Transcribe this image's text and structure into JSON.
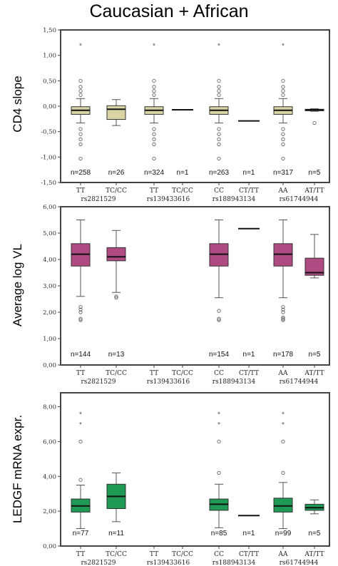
{
  "title": "Caucasian + African",
  "colors": {
    "cd4_box": "#d9d4a4",
    "vl_box": "#b04a82",
    "mrna_box": "#1f9a55",
    "frame": "#444444"
  },
  "chart_data": [
    {
      "type": "boxplot",
      "ylabel": "CD4  slope",
      "ylim": [
        -1.5,
        1.5
      ],
      "yticks": [
        "-1,50",
        "-1,00",
        "-0,50",
        "0,00",
        "0,50",
        "1,00",
        "1,50"
      ],
      "yticks_num": [
        -1.5,
        -1.0,
        -0.5,
        0.0,
        0.5,
        1.0,
        1.5
      ],
      "box_color": "#d9d4a4",
      "snps": [
        "rs2821529",
        "rs139433616",
        "rs188943134",
        "rs61744944"
      ],
      "categories": [
        "TT",
        "TC/CC",
        "TT",
        "TC/CC",
        "CC",
        "CT/TT",
        "AA",
        "AT/TT"
      ],
      "n_labels": [
        "n=258",
        "n=26",
        "n=324",
        "n=1",
        "n=263",
        "n=1",
        "n=317",
        "n=5"
      ],
      "boxes": [
        {
          "q1": -0.16,
          "median": -0.08,
          "q3": -0.01,
          "whislo": -0.33,
          "whishi": 0.15,
          "outliers": [
            -0.45,
            -0.55,
            -0.65,
            -0.75,
            0.22,
            0.3,
            0.38,
            0.5,
            1.2,
            -1.03
          ]
        },
        {
          "q1": -0.26,
          "median": -0.06,
          "q3": 0.01,
          "whislo": -0.38,
          "whishi": 0.13,
          "outliers": []
        },
        {
          "q1": -0.16,
          "median": -0.08,
          "q3": -0.01,
          "whislo": -0.33,
          "whishi": 0.15,
          "outliers": [
            -0.45,
            -0.55,
            -0.65,
            -0.75,
            0.22,
            0.3,
            0.38,
            0.5,
            1.2,
            -1.03
          ]
        },
        {
          "median": -0.07
        },
        {
          "q1": -0.16,
          "median": -0.08,
          "q3": -0.01,
          "whislo": -0.33,
          "whishi": 0.15,
          "outliers": [
            -0.45,
            -0.55,
            -0.65,
            -0.75,
            0.22,
            0.3,
            0.38,
            0.5,
            1.2,
            -1.03
          ]
        },
        {
          "median": -0.29
        },
        {
          "q1": -0.16,
          "median": -0.08,
          "q3": -0.01,
          "whislo": -0.33,
          "whishi": 0.15,
          "outliers": [
            -0.45,
            -0.55,
            -0.65,
            -0.75,
            0.22,
            0.3,
            0.38,
            0.5,
            1.2,
            -1.03
          ]
        },
        {
          "q1": -0.09,
          "median": -0.07,
          "q3": -0.06,
          "whislo": -0.1,
          "whishi": -0.05,
          "outliers": [
            -0.33
          ]
        }
      ]
    },
    {
      "type": "boxplot",
      "ylabel": "Average log VL",
      "ylim": [
        0,
        6
      ],
      "yticks": [
        "0,00",
        "1,00",
        "2,00",
        "3,00",
        "4,00",
        "5,00",
        "6,00"
      ],
      "yticks_num": [
        0,
        1,
        2,
        3,
        4,
        5,
        6
      ],
      "box_color": "#b04a82",
      "snps": [
        "rs2821529",
        "rs139433616",
        "rs188943134",
        "rs61744944"
      ],
      "categories": [
        "TT",
        "TC/CC",
        "TT",
        "TC/CC",
        "CC",
        "CT/TT",
        "AA",
        "AT/TT"
      ],
      "n_labels": [
        "n=144",
        "n=13",
        "",
        "",
        "n=154",
        "n=1",
        "n=178",
        "n=5"
      ],
      "boxes": [
        {
          "q1": 3.75,
          "median": 4.2,
          "q3": 4.6,
          "whislo": 2.6,
          "whishi": 5.5,
          "outliers": [
            2.2,
            2.1,
            2.0,
            1.75,
            1.7
          ]
        },
        {
          "q1": 3.95,
          "median": 4.1,
          "q3": 4.45,
          "whislo": 2.75,
          "whishi": 5.1,
          "outliers": [
            2.6,
            2.55
          ]
        },
        null,
        null,
        {
          "q1": 3.75,
          "median": 4.2,
          "q3": 4.6,
          "whislo": 2.55,
          "whishi": 5.5,
          "outliers": [
            2.05,
            1.75,
            1.7
          ]
        },
        {
          "median": 5.17
        },
        {
          "q1": 3.75,
          "median": 4.2,
          "q3": 4.6,
          "whislo": 2.55,
          "whishi": 5.5,
          "outliers": [
            2.2,
            2.1,
            2.0,
            1.8,
            1.75,
            1.7
          ]
        },
        {
          "q1": 3.4,
          "median": 3.5,
          "q3": 4.05,
          "whislo": 3.3,
          "whishi": 4.95,
          "outliers": []
        }
      ]
    },
    {
      "type": "boxplot",
      "ylabel": "LEDGF mRNA  expr.",
      "ylim": [
        0,
        8.8
      ],
      "yticks": [
        "0,00",
        "2,00",
        "4,00",
        "6,00",
        "8,00"
      ],
      "yticks_num": [
        0,
        2,
        4,
        6,
        8
      ],
      "box_color": "#1f9a55",
      "snps": [
        "rs2821529",
        "rs139433616",
        "rs188943134",
        "rs61744944"
      ],
      "categories": [
        "TT",
        "TC/CC",
        "TT",
        "TC/CC",
        "CC",
        "CT/TT",
        "AA",
        "AT/TT"
      ],
      "n_labels": [
        "n=77",
        "n=11",
        "",
        "",
        "n=85",
        "n=1",
        "n=99",
        "n=5"
      ],
      "boxes": [
        {
          "q1": 1.95,
          "median": 2.3,
          "q3": 2.7,
          "whislo": 1.0,
          "whishi": 3.5,
          "outliers": [
            3.8,
            7.6,
            7.0,
            6.0
          ]
        },
        {
          "q1": 2.15,
          "median": 2.85,
          "q3": 3.55,
          "whislo": 1.4,
          "whishi": 4.2,
          "outliers": []
        },
        null,
        null,
        {
          "q1": 2.05,
          "median": 2.4,
          "q3": 2.7,
          "whislo": 1.05,
          "whishi": 3.55,
          "outliers": [
            4.2,
            7.6,
            7.0,
            6.0
          ]
        },
        {
          "median": 1.75
        },
        {
          "q1": 1.95,
          "median": 2.3,
          "q3": 2.75,
          "whislo": 1.0,
          "whishi": 3.65,
          "outliers": [
            4.2,
            7.6,
            7.0,
            6.0
          ]
        },
        {
          "q1": 2.05,
          "median": 2.2,
          "q3": 2.4,
          "whislo": 1.85,
          "whishi": 2.65,
          "outliers": []
        }
      ]
    }
  ]
}
